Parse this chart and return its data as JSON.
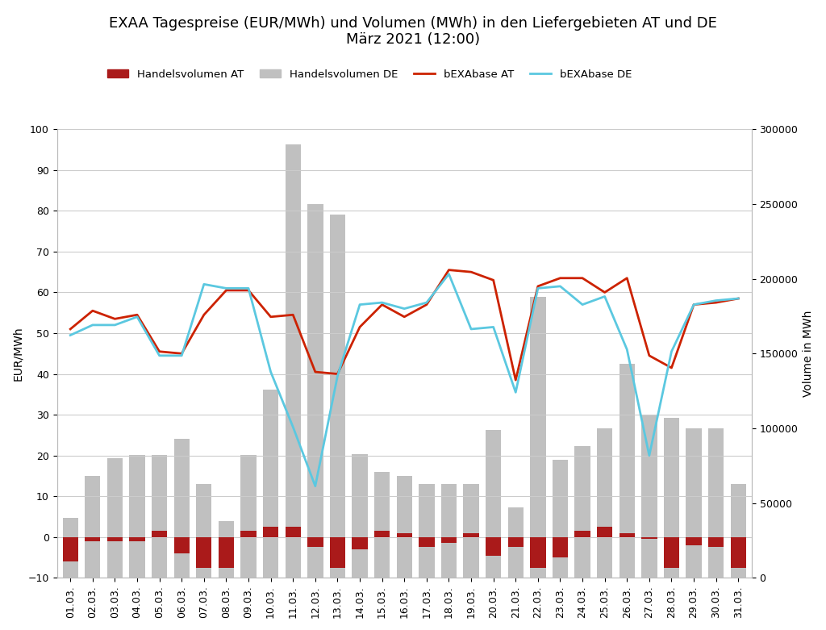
{
  "title": "EXAA Tagespreise (EUR/MWh) und Volumen (MWh) in den Liefergebieten AT und DE\nMärz 2021 (12:00)",
  "dates": [
    "01.03.",
    "02.03.",
    "03.03.",
    "04.03.",
    "05.03.",
    "06.03.",
    "07.03.",
    "08.03.",
    "09.03.",
    "10.03.",
    "11.03.",
    "12.03.",
    "13.03.",
    "14.03.",
    "15.03.",
    "16.03.",
    "17.03.",
    "18.03.",
    "19.03.",
    "20.03.",
    "21.03.",
    "22.03.",
    "23.03.",
    "24.03.",
    "25.03.",
    "26.03.",
    "27.03.",
    "28.03.",
    "29.03.",
    "30.03.",
    "31.03."
  ],
  "vol_AT_left": [
    -6.0,
    -1.0,
    -1.0,
    -1.0,
    1.5,
    -4.0,
    -7.5,
    -7.5,
    1.5,
    2.5,
    2.5,
    -2.5,
    -7.5,
    -3.0,
    1.5,
    1.0,
    -2.5,
    -1.5,
    1.0,
    -4.5,
    -2.5,
    -7.5,
    -5.0,
    1.5,
    2.5,
    1.0,
    -0.5,
    -7.5,
    -2.0,
    -2.5,
    -7.5
  ],
  "vol_DE": [
    40000,
    68000,
    80000,
    82000,
    82000,
    93000,
    63000,
    38000,
    82000,
    126000,
    290000,
    250000,
    243000,
    83000,
    71000,
    68000,
    63000,
    63000,
    63000,
    99000,
    47000,
    188000,
    79000,
    88000,
    100000,
    143000,
    109000,
    107000,
    100000,
    100000,
    63000
  ],
  "bEXA_AT": [
    51.0,
    55.5,
    53.5,
    54.5,
    45.5,
    45.0,
    54.5,
    60.5,
    60.5,
    54.0,
    54.5,
    40.5,
    40.0,
    51.5,
    57.0,
    54.0,
    57.0,
    65.5,
    65.0,
    63.0,
    38.5,
    61.5,
    63.5,
    63.5,
    60.0,
    63.5,
    44.5,
    41.5,
    57.0,
    57.5,
    58.5
  ],
  "bEXA_DE": [
    49.5,
    52.0,
    52.0,
    54.0,
    44.5,
    44.5,
    62.0,
    61.0,
    61.0,
    40.5,
    27.0,
    12.5,
    39.5,
    57.0,
    57.5,
    56.0,
    57.5,
    64.5,
    51.0,
    51.5,
    35.5,
    61.0,
    61.5,
    57.0,
    59.0,
    46.0,
    20.0,
    45.5,
    57.0,
    58.0,
    58.5
  ],
  "ylabel_left": "EUR/MWh",
  "ylabel_right": "Volume in MWh",
  "ylim_left": [
    -10,
    100
  ],
  "ylim_right": [
    0,
    300000
  ],
  "color_AT_bar": "#aa1a1a",
  "color_DE_bar": "#c0c0c0",
  "color_AT_line": "#cc2200",
  "color_DE_line": "#5bc8e0",
  "legend_labels": [
    "Handelsvolumen AT",
    "Handelsvolumen DE",
    "bEXAbase AT",
    "bEXAbase DE"
  ],
  "background_color": "#ffffff",
  "grid_color": "#cccccc",
  "title_fontsize": 13,
  "axis_fontsize": 10,
  "tick_fontsize": 9
}
